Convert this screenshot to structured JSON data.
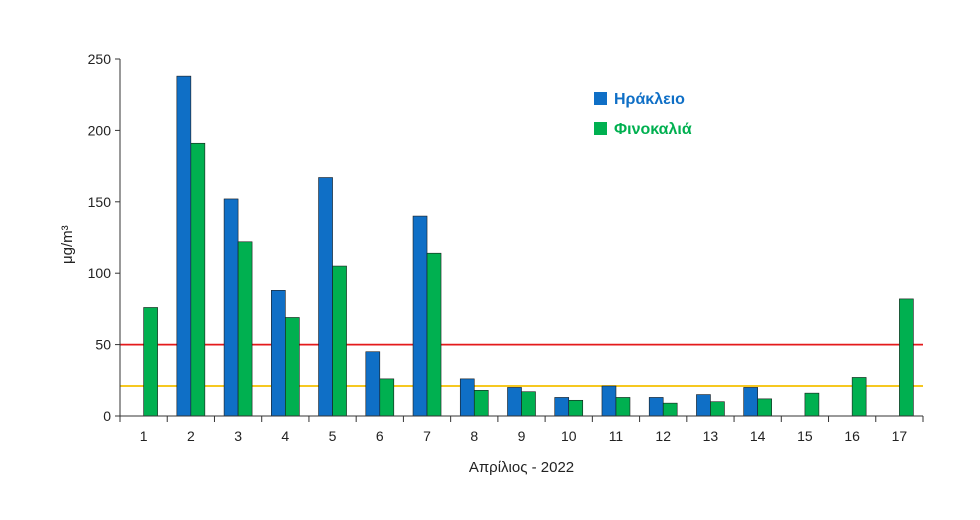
{
  "chart_data": {
    "type": "bar",
    "title": "",
    "xlabel": "Απρίλιος - 2022",
    "ylabel": "μg/m³",
    "ylim": [
      0,
      250
    ],
    "yticks": [
      0,
      50,
      100,
      150,
      200,
      250
    ],
    "categories": [
      "1",
      "2",
      "3",
      "4",
      "5",
      "6",
      "7",
      "8",
      "9",
      "10",
      "11",
      "12",
      "13",
      "14",
      "15",
      "16",
      "17"
    ],
    "series": [
      {
        "name": "Ηράκλειο",
        "color": "#0f6fc6",
        "values": [
          null,
          238,
          152,
          88,
          167,
          45,
          140,
          26,
          20,
          13,
          21,
          13,
          15,
          20,
          null,
          null,
          null
        ]
      },
      {
        "name": "Φινοκαλιά",
        "color": "#00b050",
        "values": [
          76,
          191,
          122,
          69,
          105,
          26,
          114,
          18,
          17,
          11,
          13,
          9,
          10,
          12,
          16,
          27,
          82
        ]
      }
    ],
    "reference_lines": [
      {
        "value": 50,
        "color": "#e41a1c"
      },
      {
        "value": 21,
        "color": "#f5c000"
      }
    ],
    "legend_position": "top-right",
    "grid": false
  }
}
